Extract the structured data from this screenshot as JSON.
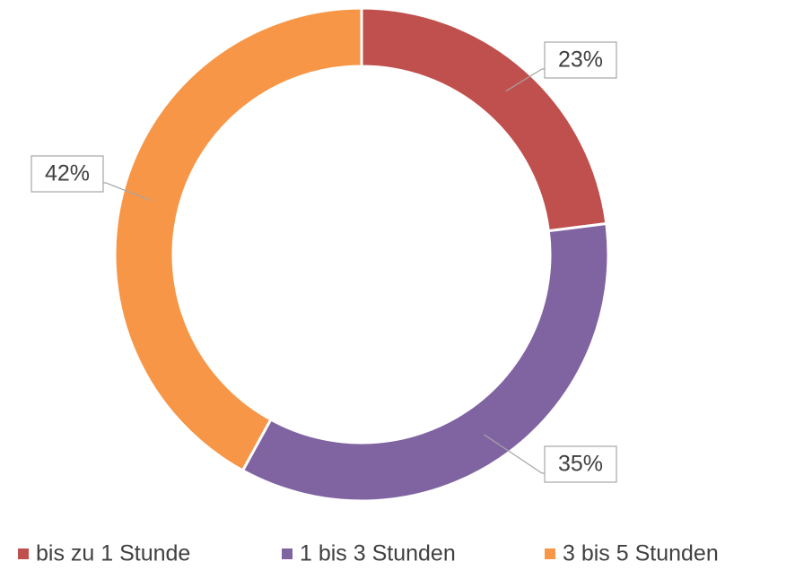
{
  "chart_data": {
    "type": "donut",
    "categories": [
      "bis zu 1 Stunde",
      "1 bis 3 Stunden",
      "3 bis 5 Stunden"
    ],
    "values": [
      23,
      35,
      42
    ],
    "value_labels": [
      "23%",
      "35%",
      "42%"
    ],
    "colors": [
      "#c0504d",
      "#8064a2",
      "#f79646"
    ],
    "legend": "bottom"
  }
}
